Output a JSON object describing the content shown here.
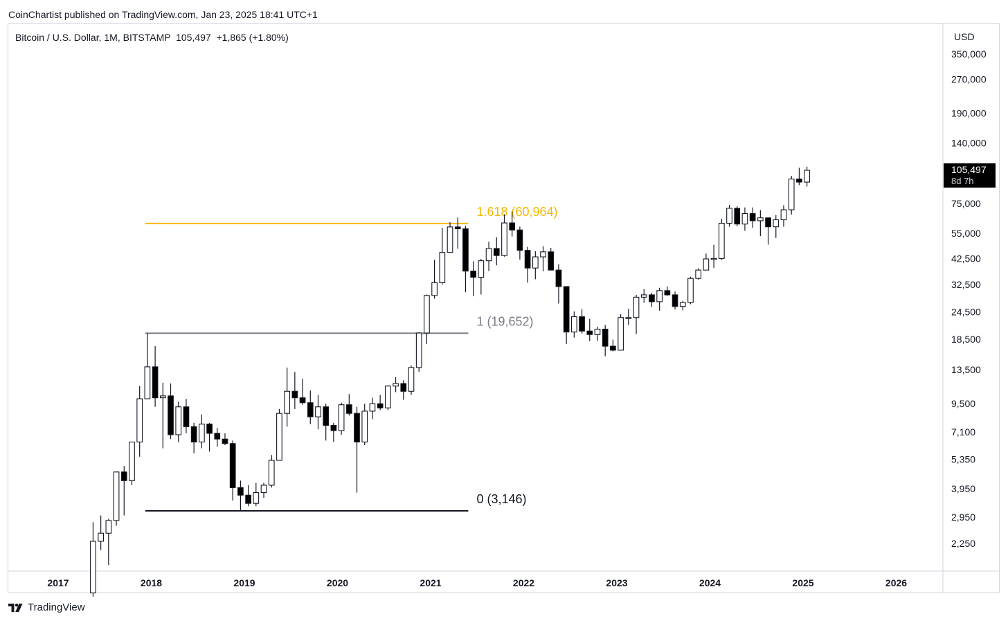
{
  "publisher": "CoinChartist published on TradingView.com, Jan 23, 2025 18:41 UTC+1",
  "legend": {
    "symbol": "Bitcoin / U.S. Dollar, 1M, BITSTAMP",
    "last": "105,497",
    "change": "+1,865 (+1.80%)"
  },
  "footer": {
    "brand": "TradingView"
  },
  "colors": {
    "fib_1618": "#f5b800",
    "fib_1": "#787b86",
    "fib_0": "#131722",
    "up": "#ffffff",
    "down": "#000000",
    "wick": "#131722"
  },
  "chart_data": {
    "type": "candlestick",
    "interval": "1M",
    "scale": "log",
    "currency": "USD",
    "ylim": [
      1700,
      420000
    ],
    "y_ticks": [
      {
        "value": 350000,
        "label": "350,000"
      },
      {
        "value": 270000,
        "label": "270,000"
      },
      {
        "value": 190000,
        "label": "190,000"
      },
      {
        "value": 140000,
        "label": "140,000"
      },
      {
        "value": 75000,
        "label": "75,000"
      },
      {
        "value": 55000,
        "label": "55,000"
      },
      {
        "value": 42500,
        "label": "42,500"
      },
      {
        "value": 32500,
        "label": "32,500"
      },
      {
        "value": 24500,
        "label": "24,500"
      },
      {
        "value": 18500,
        "label": "18,500"
      },
      {
        "value": 13500,
        "label": "13,500"
      },
      {
        "value": 9500,
        "label": "9,500"
      },
      {
        "value": 7100,
        "label": "7,100"
      },
      {
        "value": 5350,
        "label": "5,350"
      },
      {
        "value": 3950,
        "label": "3,950"
      },
      {
        "value": 2950,
        "label": "2,950"
      },
      {
        "value": 2250,
        "label": "2,250"
      }
    ],
    "x_ticks": [
      "2017",
      "2018",
      "2019",
      "2020",
      "2021",
      "2022",
      "2023",
      "2024",
      "2025",
      "2026"
    ],
    "x_range": [
      "2016-07",
      "2026-12"
    ],
    "last_price": {
      "value": 105497,
      "label": "105,497",
      "countdown": "8d 7h"
    },
    "fib_levels": [
      {
        "ratio": "1.618",
        "value": 60964,
        "label": "1.618 (60,964)",
        "from": "2017-12",
        "to": "2021-05"
      },
      {
        "ratio": "1",
        "value": 19652,
        "label": "1 (19,652)",
        "from": "2017-12",
        "to": "2021-05"
      },
      {
        "ratio": "0",
        "value": 3146,
        "label": "0 (3,146)",
        "from": "2017-12",
        "to": "2021-05"
      }
    ],
    "candles": [
      {
        "t": "2017-05",
        "o": 1350,
        "h": 2800,
        "l": 1300,
        "c": 2300
      },
      {
        "t": "2017-06",
        "o": 2300,
        "h": 3000,
        "l": 2100,
        "c": 2500
      },
      {
        "t": "2017-07",
        "o": 2500,
        "h": 2900,
        "l": 1800,
        "c": 2850
      },
      {
        "t": "2017-08",
        "o": 2850,
        "h": 4400,
        "l": 2700,
        "c": 4700
      },
      {
        "t": "2017-09",
        "o": 4700,
        "h": 5000,
        "l": 3000,
        "c": 4300
      },
      {
        "t": "2017-10",
        "o": 4300,
        "h": 6400,
        "l": 4100,
        "c": 6400
      },
      {
        "t": "2017-11",
        "o": 6400,
        "h": 11400,
        "l": 5500,
        "c": 10000
      },
      {
        "t": "2017-12",
        "o": 10000,
        "h": 19652,
        "l": 10500,
        "c": 13900
      },
      {
        "t": "2018-01",
        "o": 13900,
        "h": 17200,
        "l": 9200,
        "c": 10100
      },
      {
        "t": "2018-02",
        "o": 10100,
        "h": 11800,
        "l": 6000,
        "c": 10300
      },
      {
        "t": "2018-03",
        "o": 10300,
        "h": 11700,
        "l": 6600,
        "c": 6900
      },
      {
        "t": "2018-04",
        "o": 6900,
        "h": 9700,
        "l": 6400,
        "c": 9200
      },
      {
        "t": "2018-05",
        "o": 9200,
        "h": 10000,
        "l": 7000,
        "c": 7500
      },
      {
        "t": "2018-06",
        "o": 7500,
        "h": 7800,
        "l": 5700,
        "c": 6400
      },
      {
        "t": "2018-07",
        "o": 6400,
        "h": 8500,
        "l": 6000,
        "c": 7700
      },
      {
        "t": "2018-08",
        "o": 7700,
        "h": 7800,
        "l": 5800,
        "c": 7000
      },
      {
        "t": "2018-09",
        "o": 7000,
        "h": 7400,
        "l": 6100,
        "c": 6600
      },
      {
        "t": "2018-10",
        "o": 6600,
        "h": 7000,
        "l": 6200,
        "c": 6300
      },
      {
        "t": "2018-11",
        "o": 6300,
        "h": 6500,
        "l": 3500,
        "c": 4000
      },
      {
        "t": "2018-12",
        "o": 4000,
        "h": 4300,
        "l": 3146,
        "c": 3700
      },
      {
        "t": "2019-01",
        "o": 3700,
        "h": 4100,
        "l": 3300,
        "c": 3400
      },
      {
        "t": "2019-02",
        "o": 3400,
        "h": 4200,
        "l": 3300,
        "c": 3800
      },
      {
        "t": "2019-03",
        "o": 3800,
        "h": 4200,
        "l": 3600,
        "c": 4100
      },
      {
        "t": "2019-04",
        "o": 4100,
        "h": 5600,
        "l": 4000,
        "c": 5300
      },
      {
        "t": "2019-05",
        "o": 5300,
        "h": 9000,
        "l": 5300,
        "c": 8600
      },
      {
        "t": "2019-06",
        "o": 8600,
        "h": 13800,
        "l": 7500,
        "c": 10800
      },
      {
        "t": "2019-07",
        "o": 10800,
        "h": 13200,
        "l": 9000,
        "c": 10100
      },
      {
        "t": "2019-08",
        "o": 10100,
        "h": 12300,
        "l": 9400,
        "c": 9600
      },
      {
        "t": "2019-09",
        "o": 9600,
        "h": 10900,
        "l": 7700,
        "c": 8300
      },
      {
        "t": "2019-10",
        "o": 8300,
        "h": 10400,
        "l": 7300,
        "c": 9200
      },
      {
        "t": "2019-11",
        "o": 9200,
        "h": 9500,
        "l": 6500,
        "c": 7600
      },
      {
        "t": "2019-12",
        "o": 7600,
        "h": 7800,
        "l": 6400,
        "c": 7200
      },
      {
        "t": "2020-01",
        "o": 7200,
        "h": 9600,
        "l": 6900,
        "c": 9400
      },
      {
        "t": "2020-02",
        "o": 9400,
        "h": 10500,
        "l": 8400,
        "c": 8600
      },
      {
        "t": "2020-03",
        "o": 8600,
        "h": 9200,
        "l": 3800,
        "c": 6400
      },
      {
        "t": "2020-04",
        "o": 6400,
        "h": 9500,
        "l": 6200,
        "c": 8800
      },
      {
        "t": "2020-05",
        "o": 8800,
        "h": 10100,
        "l": 8100,
        "c": 9500
      },
      {
        "t": "2020-06",
        "o": 9500,
        "h": 10400,
        "l": 8900,
        "c": 9100
      },
      {
        "t": "2020-07",
        "o": 9100,
        "h": 11500,
        "l": 8900,
        "c": 11400
      },
      {
        "t": "2020-08",
        "o": 11400,
        "h": 12500,
        "l": 10700,
        "c": 11700
      },
      {
        "t": "2020-09",
        "o": 11700,
        "h": 12100,
        "l": 9900,
        "c": 10800
      },
      {
        "t": "2020-10",
        "o": 10800,
        "h": 14100,
        "l": 10400,
        "c": 13800
      },
      {
        "t": "2020-11",
        "o": 13800,
        "h": 19900,
        "l": 13200,
        "c": 19700
      },
      {
        "t": "2020-12",
        "o": 19700,
        "h": 29300,
        "l": 17600,
        "c": 29000
      },
      {
        "t": "2021-01",
        "o": 29000,
        "h": 41900,
        "l": 28100,
        "c": 33100
      },
      {
        "t": "2021-02",
        "o": 33100,
        "h": 58300,
        "l": 32400,
        "c": 45200
      },
      {
        "t": "2021-03",
        "o": 45200,
        "h": 61800,
        "l": 45000,
        "c": 58800
      },
      {
        "t": "2021-04",
        "o": 58800,
        "h": 64900,
        "l": 47000,
        "c": 57700
      },
      {
        "t": "2021-05",
        "o": 57700,
        "h": 59500,
        "l": 30000,
        "c": 37300
      },
      {
        "t": "2021-06",
        "o": 37300,
        "h": 41300,
        "l": 28800,
        "c": 35000
      },
      {
        "t": "2021-07",
        "o": 35000,
        "h": 42300,
        "l": 29300,
        "c": 41500
      },
      {
        "t": "2021-08",
        "o": 41500,
        "h": 50500,
        "l": 37300,
        "c": 47100
      },
      {
        "t": "2021-09",
        "o": 47100,
        "h": 52900,
        "l": 39600,
        "c": 43800
      },
      {
        "t": "2021-10",
        "o": 43800,
        "h": 67000,
        "l": 43300,
        "c": 61300
      },
      {
        "t": "2021-11",
        "o": 61300,
        "h": 69000,
        "l": 53300,
        "c": 57000
      },
      {
        "t": "2021-12",
        "o": 57000,
        "h": 59000,
        "l": 42000,
        "c": 46200
      },
      {
        "t": "2022-01",
        "o": 46200,
        "h": 47900,
        "l": 33100,
        "c": 38500
      },
      {
        "t": "2022-02",
        "o": 38500,
        "h": 45800,
        "l": 34300,
        "c": 43200
      },
      {
        "t": "2022-03",
        "o": 43200,
        "h": 48200,
        "l": 37200,
        "c": 45500
      },
      {
        "t": "2022-04",
        "o": 45500,
        "h": 47400,
        "l": 37700,
        "c": 37700
      },
      {
        "t": "2022-05",
        "o": 37700,
        "h": 40000,
        "l": 26700,
        "c": 31800
      },
      {
        "t": "2022-06",
        "o": 31800,
        "h": 31900,
        "l": 17600,
        "c": 19900
      },
      {
        "t": "2022-07",
        "o": 19900,
        "h": 24600,
        "l": 18800,
        "c": 23300
      },
      {
        "t": "2022-08",
        "o": 23300,
        "h": 25200,
        "l": 19600,
        "c": 20100
      },
      {
        "t": "2022-09",
        "o": 20100,
        "h": 22800,
        "l": 18100,
        "c": 19400
      },
      {
        "t": "2022-10",
        "o": 19400,
        "h": 21000,
        "l": 18200,
        "c": 20500
      },
      {
        "t": "2022-11",
        "o": 20500,
        "h": 21400,
        "l": 15500,
        "c": 17200
      },
      {
        "t": "2022-12",
        "o": 17200,
        "h": 18400,
        "l": 16300,
        "c": 16500
      },
      {
        "t": "2023-01",
        "o": 16500,
        "h": 23900,
        "l": 16500,
        "c": 23100
      },
      {
        "t": "2023-02",
        "o": 23100,
        "h": 25300,
        "l": 21400,
        "c": 23100
      },
      {
        "t": "2023-03",
        "o": 23100,
        "h": 29200,
        "l": 19500,
        "c": 28500
      },
      {
        "t": "2023-04",
        "o": 28500,
        "h": 31000,
        "l": 26900,
        "c": 29200
      },
      {
        "t": "2023-05",
        "o": 29200,
        "h": 29800,
        "l": 25800,
        "c": 27200
      },
      {
        "t": "2023-06",
        "o": 27200,
        "h": 31400,
        "l": 24800,
        "c": 30500
      },
      {
        "t": "2023-07",
        "o": 30500,
        "h": 31800,
        "l": 28900,
        "c": 29200
      },
      {
        "t": "2023-08",
        "o": 29200,
        "h": 30200,
        "l": 25100,
        "c": 25900
      },
      {
        "t": "2023-09",
        "o": 25900,
        "h": 27500,
        "l": 24900,
        "c": 27000
      },
      {
        "t": "2023-10",
        "o": 27000,
        "h": 35200,
        "l": 26500,
        "c": 34600
      },
      {
        "t": "2023-11",
        "o": 34600,
        "h": 38400,
        "l": 34100,
        "c": 37700
      },
      {
        "t": "2023-12",
        "o": 37700,
        "h": 44700,
        "l": 37600,
        "c": 42300
      },
      {
        "t": "2024-01",
        "o": 42300,
        "h": 48900,
        "l": 38500,
        "c": 42500
      },
      {
        "t": "2024-02",
        "o": 42500,
        "h": 64000,
        "l": 41800,
        "c": 61100
      },
      {
        "t": "2024-03",
        "o": 61100,
        "h": 73800,
        "l": 59000,
        "c": 71300
      },
      {
        "t": "2024-04",
        "o": 71300,
        "h": 72700,
        "l": 59200,
        "c": 60600
      },
      {
        "t": "2024-05",
        "o": 60600,
        "h": 71900,
        "l": 56500,
        "c": 67500
      },
      {
        "t": "2024-06",
        "o": 67500,
        "h": 71900,
        "l": 58400,
        "c": 62700
      },
      {
        "t": "2024-07",
        "o": 62700,
        "h": 70000,
        "l": 53500,
        "c": 64600
      },
      {
        "t": "2024-08",
        "o": 64600,
        "h": 65000,
        "l": 49000,
        "c": 58900
      },
      {
        "t": "2024-09",
        "o": 58900,
        "h": 66500,
        "l": 52500,
        "c": 63300
      },
      {
        "t": "2024-10",
        "o": 63300,
        "h": 73600,
        "l": 58900,
        "c": 70200
      },
      {
        "t": "2024-11",
        "o": 70200,
        "h": 99600,
        "l": 66800,
        "c": 96400
      },
      {
        "t": "2024-12",
        "o": 96400,
        "h": 108300,
        "l": 90500,
        "c": 93400
      },
      {
        "t": "2025-01",
        "o": 93400,
        "h": 109500,
        "l": 89200,
        "c": 105497
      }
    ]
  }
}
